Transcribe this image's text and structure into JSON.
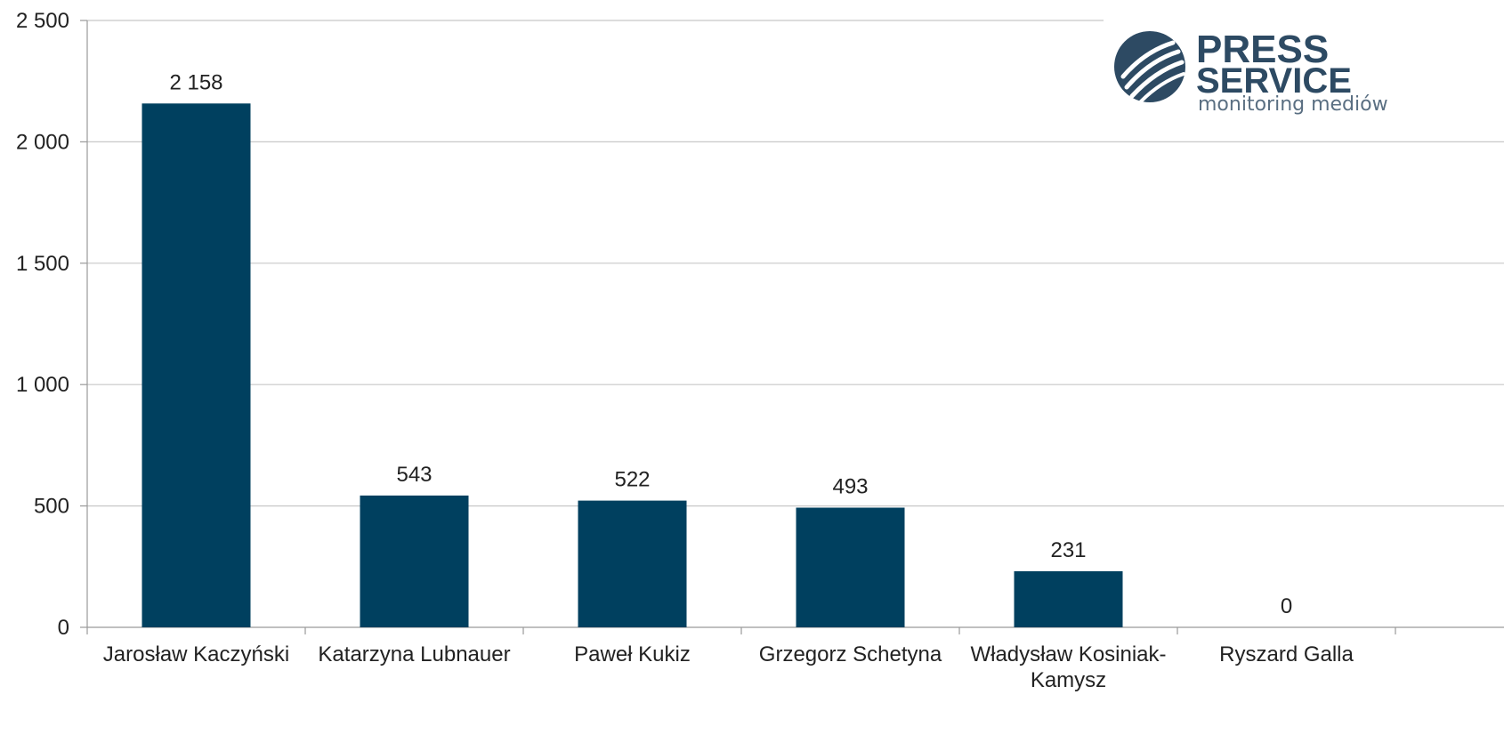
{
  "chart_data": {
    "type": "bar",
    "categories": [
      [
        "Jarosław Kaczyński"
      ],
      [
        "Katarzyna Lubnauer"
      ],
      [
        "Paweł Kukiz"
      ],
      [
        "Grzegorz Schetyna"
      ],
      [
        "Władysław Kosiniak-",
        "Kamysz"
      ],
      [
        "Ryszard Galla"
      ]
    ],
    "values": [
      2158,
      543,
      522,
      493,
      231,
      0
    ],
    "value_labels": [
      "2 158",
      "543",
      "522",
      "493",
      "231",
      "0"
    ],
    "title": "",
    "xlabel": "",
    "ylabel": "",
    "ylim": [
      0,
      2500
    ],
    "yticks": [
      0,
      500,
      1000,
      1500,
      2000,
      2500
    ],
    "ytick_labels": [
      "0",
      "500",
      "1 000",
      "1 500",
      "2 000",
      "2 500"
    ],
    "grid": true,
    "legend": "none",
    "bar_color": "#00405f",
    "grid_color": "#c8c8c8"
  },
  "logo": {
    "line1": "PRESS",
    "line2": "SERVICE",
    "line3": "monitoring mediów",
    "color": "#2d4a63"
  }
}
